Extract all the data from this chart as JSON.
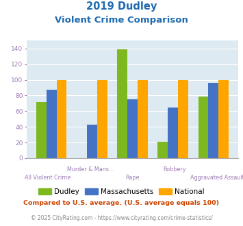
{
  "title_line1": "2019 Dudley",
  "title_line2": "Violent Crime Comparison",
  "categories": [
    "All Violent Crime",
    "Murder & Mans...",
    "Rape",
    "Robbery",
    "Aggravated Assault"
  ],
  "dudley": [
    72,
    0,
    139,
    21,
    79
  ],
  "massachusetts": [
    87,
    43,
    75,
    65,
    96
  ],
  "national": [
    100,
    100,
    100,
    100,
    100
  ],
  "dudley_color": "#7db820",
  "mass_color": "#4472c4",
  "national_color": "#ffa500",
  "bg_color": "#deeaf1",
  "ylim": [
    0,
    150
  ],
  "yticks": [
    0,
    20,
    40,
    60,
    80,
    100,
    120,
    140
  ],
  "footnote1": "Compared to U.S. average. (U.S. average equals 100)",
  "footnote2": "© 2025 CityRating.com - https://www.cityrating.com/crime-statistics/",
  "title_color": "#1f6bb0",
  "footnote1_color": "#cc4400",
  "footnote2_color": "#888888",
  "xlabel_color": "#9e7bb5",
  "tick_color": "#9e7bb5",
  "bar_width": 0.25
}
